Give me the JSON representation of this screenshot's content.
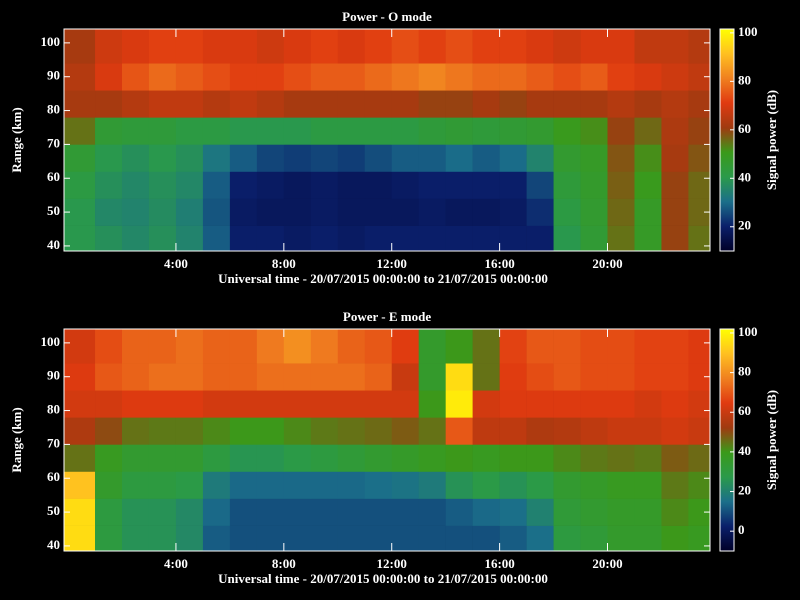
{
  "chart_data": [
    {
      "type": "heatmap",
      "title": "Power - O mode",
      "xlabel": "Universal time - 20/07/2015 00:00:00 to 21/07/2015 00:00:00",
      "ylabel": "Range (km)",
      "colorbar_label": "Signal power (dB)",
      "xbins": [
        -0.15,
        1,
        2,
        3,
        4,
        5,
        6,
        7,
        8,
        9,
        10,
        11,
        12,
        13,
        14,
        15,
        16,
        17,
        18,
        19,
        20,
        21,
        22,
        23,
        23.8
      ],
      "ybins": [
        38.5,
        46,
        54,
        62,
        70,
        78,
        86,
        94,
        104.1
      ],
      "z": [
        [
          40,
          38,
          36,
          38,
          35,
          28,
          20,
          20,
          19,
          20,
          19,
          20,
          20,
          20,
          20,
          20,
          20,
          20,
          40,
          45,
          55,
          48,
          60,
          55
        ],
        [
          40,
          36,
          35,
          37,
          34,
          27,
          19,
          18,
          18,
          19,
          18,
          18,
          18,
          19,
          18,
          18,
          19,
          22,
          42,
          46,
          56,
          48,
          60,
          56
        ],
        [
          42,
          38,
          36,
          38,
          36,
          28,
          20,
          19,
          18,
          19,
          18,
          18,
          19,
          20,
          20,
          20,
          20,
          25,
          44,
          47,
          57,
          50,
          60,
          56
        ],
        [
          45,
          40,
          38,
          40,
          38,
          32,
          28,
          25,
          24,
          25,
          24,
          26,
          28,
          28,
          30,
          28,
          30,
          35,
          46,
          48,
          58,
          52,
          62,
          58
        ],
        [
          55,
          45,
          44,
          44,
          42,
          42,
          40,
          40,
          40,
          42,
          42,
          42,
          42,
          44,
          45,
          44,
          45,
          46,
          50,
          52,
          60,
          56,
          63,
          60
        ],
        [
          62,
          62,
          64,
          66,
          66,
          64,
          66,
          64,
          62,
          62,
          62,
          62,
          62,
          60,
          60,
          62,
          60,
          62,
          62,
          62,
          64,
          62,
          64,
          62
        ],
        [
          64,
          70,
          75,
          78,
          76,
          74,
          72,
          72,
          74,
          76,
          76,
          78,
          80,
          82,
          80,
          78,
          78,
          76,
          74,
          76,
          72,
          70,
          68,
          66
        ],
        [
          62,
          68,
          70,
          72,
          72,
          70,
          70,
          68,
          70,
          72,
          70,
          72,
          74,
          72,
          74,
          72,
          72,
          70,
          68,
          70,
          70,
          66,
          66,
          64
        ]
      ],
      "xlim": [
        -0.15,
        23.8
      ],
      "ylim": [
        38.5,
        104.1
      ],
      "xticks": [
        {
          "value": 4,
          "label": "4:00"
        },
        {
          "value": 8,
          "label": "8:00"
        },
        {
          "value": 12,
          "label": "12:00"
        },
        {
          "value": 16,
          "label": "16:00"
        },
        {
          "value": 20,
          "label": "20:00"
        }
      ],
      "yticks": [
        40,
        50,
        60,
        70,
        80,
        90,
        100
      ],
      "zlim": [
        10,
        101.6
      ],
      "zticks": [
        20,
        40,
        60,
        80,
        100
      ],
      "colorscale": [
        "#000028",
        "#0a1f6a",
        "#1b6f8a",
        "#2a9a4a",
        "#3a9a1a",
        "#a03a10",
        "#e03a10",
        "#f08020",
        "#ffc020",
        "#ffff00"
      ]
    },
    {
      "type": "heatmap",
      "title": "Power - E mode",
      "xlabel": "Universal time - 20/07/2015 00:00:00 to 21/07/2015 00:00:00",
      "ylabel": "Range (km)",
      "colorbar_label": "Signal power (dB)",
      "xbins": [
        -0.15,
        1,
        2,
        3,
        4,
        5,
        6,
        7,
        8,
        9,
        10,
        11,
        12,
        13,
        14,
        15,
        16,
        17,
        18,
        19,
        20,
        21,
        22,
        23,
        23.8
      ],
      "ybins": [
        38.5,
        46,
        54,
        62,
        70,
        78,
        86,
        94,
        104.1
      ],
      "z": [
        [
          95,
          30,
          25,
          25,
          22,
          12,
          10,
          10,
          10,
          10,
          10,
          10,
          10,
          10,
          10,
          10,
          12,
          15,
          30,
          32,
          35,
          35,
          40,
          38
        ],
        [
          95,
          30,
          25,
          25,
          22,
          14,
          10,
          10,
          10,
          10,
          10,
          10,
          10,
          10,
          12,
          14,
          15,
          20,
          32,
          34,
          36,
          36,
          42,
          40
        ],
        [
          90,
          35,
          30,
          30,
          28,
          18,
          14,
          14,
          14,
          14,
          14,
          15,
          16,
          18,
          25,
          28,
          25,
          28,
          34,
          36,
          38,
          38,
          44,
          42
        ],
        [
          45,
          38,
          34,
          34,
          34,
          30,
          26,
          26,
          28,
          30,
          32,
          34,
          36,
          38,
          40,
          38,
          40,
          40,
          42,
          44,
          45,
          44,
          48,
          46
        ],
        [
          55,
          50,
          45,
          44,
          44,
          42,
          40,
          40,
          42,
          44,
          45,
          46,
          48,
          45,
          70,
          58,
          58,
          55,
          56,
          58,
          60,
          60,
          62,
          60
        ],
        [
          62,
          62,
          64,
          64,
          64,
          62,
          62,
          62,
          62,
          62,
          62,
          62,
          62,
          40,
          98,
          62,
          64,
          64,
          64,
          64,
          64,
          62,
          64,
          62
        ],
        [
          64,
          70,
          72,
          74,
          74,
          72,
          72,
          74,
          74,
          74,
          74,
          72,
          60,
          35,
          95,
          45,
          65,
          68,
          70,
          68,
          68,
          66,
          66,
          64
        ],
        [
          62,
          68,
          72,
          72,
          74,
          72,
          72,
          76,
          80,
          76,
          72,
          70,
          65,
          35,
          40,
          45,
          66,
          70,
          70,
          68,
          68,
          66,
          66,
          64
        ]
      ],
      "xlim": [
        -0.15,
        23.8
      ],
      "ylim": [
        38.5,
        104.1
      ],
      "xticks": [
        {
          "value": 4,
          "label": "4:00"
        },
        {
          "value": 8,
          "label": "8:00"
        },
        {
          "value": 12,
          "label": "12:00"
        },
        {
          "value": 16,
          "label": "16:00"
        },
        {
          "value": 20,
          "label": "20:00"
        }
      ],
      "yticks": [
        40,
        50,
        60,
        70,
        80,
        90,
        100
      ],
      "zlim": [
        -10,
        102
      ],
      "zticks": [
        0,
        20,
        40,
        60,
        80,
        100
      ],
      "colorscale": [
        "#000028",
        "#0a1f6a",
        "#1b6f8a",
        "#2a9a4a",
        "#3a9a1a",
        "#a03a10",
        "#e03a10",
        "#f08020",
        "#ffc020",
        "#ffff00"
      ]
    }
  ]
}
